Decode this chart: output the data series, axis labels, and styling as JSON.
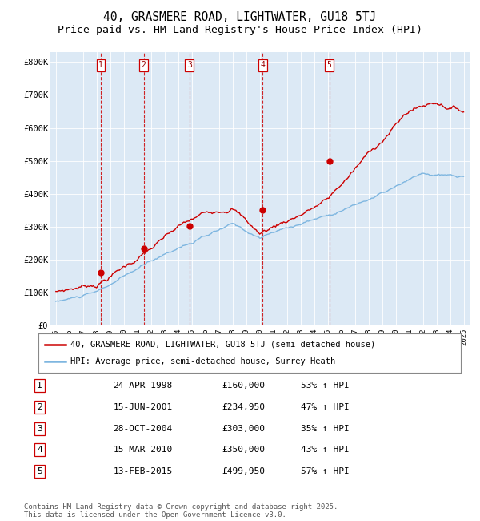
{
  "title": "40, GRASMERE ROAD, LIGHTWATER, GU18 5TJ",
  "subtitle": "Price paid vs. HM Land Registry's House Price Index (HPI)",
  "title_fontsize": 10.5,
  "subtitle_fontsize": 9.5,
  "plot_bg_color": "#dce9f5",
  "hpi_color": "#7eb6e0",
  "price_color": "#cc0000",
  "ylim": [
    0,
    830000
  ],
  "yticks": [
    0,
    100000,
    200000,
    300000,
    400000,
    500000,
    600000,
    700000,
    800000
  ],
  "ytick_labels": [
    "£0",
    "£100K",
    "£200K",
    "£300K",
    "£400K",
    "£500K",
    "£600K",
    "£700K",
    "£800K"
  ],
  "legend_price_label": "40, GRASMERE ROAD, LIGHTWATER, GU18 5TJ (semi-detached house)",
  "legend_hpi_label": "HPI: Average price, semi-detached house, Surrey Heath",
  "transactions": [
    {
      "num": 1,
      "date": 1998.31,
      "price": 160000,
      "label": "24-APR-1998",
      "pct": "53%",
      "dir": "↑"
    },
    {
      "num": 2,
      "date": 2001.46,
      "price": 234950,
      "label": "15-JUN-2001",
      "pct": "47%",
      "dir": "↑"
    },
    {
      "num": 3,
      "date": 2004.83,
      "price": 303000,
      "label": "28-OCT-2004",
      "pct": "35%",
      "dir": "↑"
    },
    {
      "num": 4,
      "date": 2010.21,
      "price": 350000,
      "label": "15-MAR-2010",
      "pct": "43%",
      "dir": "↑"
    },
    {
      "num": 5,
      "date": 2015.12,
      "price": 499950,
      "label": "13-FEB-2015",
      "pct": "57%",
      "dir": "↑"
    }
  ],
  "footer": "Contains HM Land Registry data © Crown copyright and database right 2025.\nThis data is licensed under the Open Government Licence v3.0.",
  "footer_fontsize": 6.5
}
